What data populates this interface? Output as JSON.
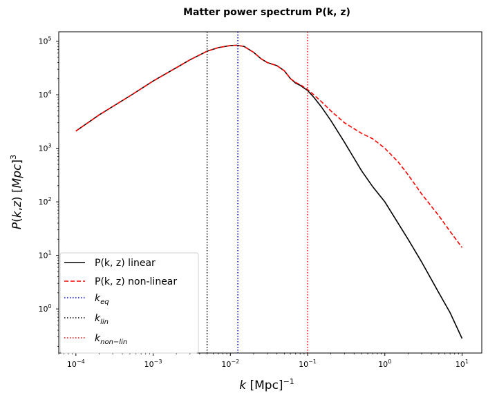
{
  "chart_data": {
    "type": "line",
    "title": "Matter power spectrum P(k, z)",
    "xlabel": "k [Mpc]^-1",
    "ylabel": "P(k,z)   [Mpc]^3",
    "xscale": "log",
    "yscale": "log",
    "xlim": [
      6e-05,
      18
    ],
    "ylim": [
      0.15,
      150000
    ],
    "x_ticks": [
      {
        "value": 0.0001,
        "base": "10",
        "exp": "−4"
      },
      {
        "value": 0.001,
        "base": "10",
        "exp": "−3"
      },
      {
        "value": 0.01,
        "base": "10",
        "exp": "−2"
      },
      {
        "value": 0.1,
        "base": "10",
        "exp": "−1"
      },
      {
        "value": 1,
        "base": "10",
        "exp": "0"
      },
      {
        "value": 10,
        "base": "10",
        "exp": "1"
      }
    ],
    "y_ticks": [
      {
        "value": 1,
        "base": "10",
        "exp": "0"
      },
      {
        "value": 10,
        "base": "10",
        "exp": "1"
      },
      {
        "value": 100,
        "base": "10",
        "exp": "2"
      },
      {
        "value": 1000,
        "base": "10",
        "exp": "3"
      },
      {
        "value": 10000,
        "base": "10",
        "exp": "4"
      },
      {
        "value": 100000,
        "base": "10",
        "exp": "5"
      }
    ],
    "grid": false,
    "legend_position": "lower-left",
    "series": [
      {
        "name": "P(k, z) linear",
        "color": "#000000",
        "style": "solid",
        "x": [
          0.0001,
          0.0002,
          0.0005,
          0.001,
          0.002,
          0.003,
          0.005,
          0.007,
          0.01,
          0.012,
          0.015,
          0.02,
          0.025,
          0.03,
          0.04,
          0.05,
          0.06,
          0.07,
          0.08,
          0.1,
          0.12,
          0.15,
          0.2,
          0.3,
          0.5,
          0.7,
          1,
          2,
          3,
          5,
          7,
          10
        ],
        "y": [
          2100,
          4200,
          9500,
          18000,
          32000,
          45000,
          65000,
          76000,
          83000,
          84000,
          80000,
          62000,
          47000,
          40000,
          35000,
          28000,
          20000,
          16500,
          15000,
          12000,
          9000,
          6000,
          3300,
          1300,
          380,
          190,
          100,
          20,
          7.5,
          2.0,
          0.85,
          0.28
        ]
      },
      {
        "name": "P(k, z) non-linear",
        "color": "#ff0000",
        "style": "dashed",
        "x": [
          0.0001,
          0.0002,
          0.0005,
          0.001,
          0.002,
          0.003,
          0.005,
          0.007,
          0.01,
          0.012,
          0.015,
          0.02,
          0.025,
          0.03,
          0.04,
          0.05,
          0.06,
          0.07,
          0.08,
          0.1,
          0.12,
          0.15,
          0.2,
          0.3,
          0.5,
          0.7,
          1,
          1.5,
          2,
          3,
          5,
          7,
          10
        ],
        "y": [
          2100,
          4200,
          9500,
          18000,
          32000,
          45000,
          65000,
          76000,
          83000,
          84000,
          80000,
          62000,
          47000,
          40000,
          35000,
          28000,
          20000,
          17000,
          15500,
          12500,
          10000,
          7500,
          5000,
          3000,
          1900,
          1500,
          1000,
          550,
          320,
          140,
          55,
          28,
          14
        ]
      }
    ],
    "vlines": [
      {
        "name": "k_eq",
        "label_main": "k",
        "label_sub": "eq",
        "x": 0.0125,
        "color": "#0000ff"
      },
      {
        "name": "k_lin",
        "label_main": "k",
        "label_sub": "lin",
        "x": 0.005,
        "color": "#000000"
      },
      {
        "name": "k_non-lin",
        "label_main": "k",
        "label_sub": "non−lin",
        "x": 0.1,
        "color": "#ff0000"
      }
    ]
  }
}
